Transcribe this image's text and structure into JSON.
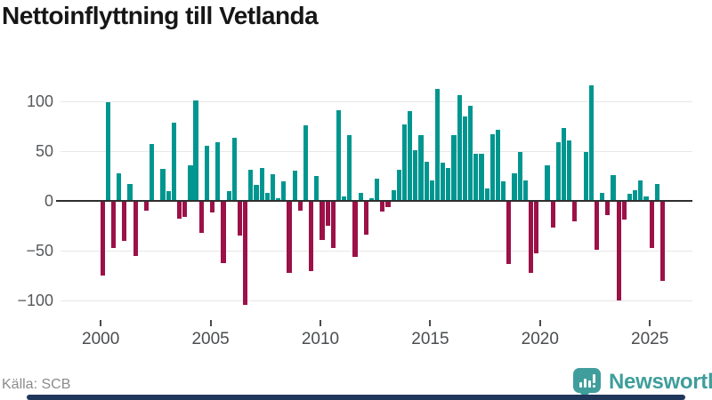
{
  "title": "Nettoinflyttning till Vetlanda",
  "source_label": "Källa: SCB",
  "branding": {
    "logo_text": "Newsworthy",
    "logo_icon": "bar-chart-speech-bubble-icon",
    "teal": "#3f9e9b",
    "navy": "#20375c"
  },
  "colors": {
    "positive_bar": "#009690",
    "negative_bar": "#9c1148",
    "grid": "#e7e7e7",
    "zero_line": "#2e2e2e",
    "axis_text": "#55585a",
    "title_text": "#161616",
    "source_text": "#8b8b8b"
  },
  "chart_data": {
    "type": "bar",
    "title": "Nettoinflyttning till Vetlanda",
    "xlabel": "",
    "ylabel": "",
    "x_start": "2000-Q1",
    "x_end": "2025-Q3",
    "frequency": "quarterly",
    "grid": true,
    "legend": false,
    "ylim": [
      -115,
      122
    ],
    "y_ticks": [
      100,
      50,
      0,
      -50,
      -100
    ],
    "y_tick_labels": [
      "100",
      "50",
      "0",
      "−50",
      "−100"
    ],
    "x_tick_labels": [
      "2000",
      "2005",
      "2010",
      "2015",
      "2020",
      "2025"
    ],
    "x_tick_quarter_indices": [
      0,
      20,
      40,
      60,
      80,
      100
    ],
    "values": [
      -74,
      98,
      -46,
      27,
      -39,
      16,
      -54,
      0,
      -9,
      56,
      0,
      31,
      9,
      77,
      -17,
      -15,
      35,
      100,
      -31,
      54,
      -11,
      58,
      -61,
      9,
      62,
      -34,
      -103,
      30,
      15,
      32,
      7,
      26,
      2,
      19,
      -71,
      29,
      -9,
      75,
      -69,
      24,
      -38,
      -24,
      -46,
      90,
      4,
      65,
      -55,
      7,
      -33,
      2,
      21,
      -10,
      -5,
      10,
      30,
      76,
      89,
      50,
      65,
      38,
      20,
      111,
      37,
      32,
      65,
      105,
      84,
      94,
      46,
      46,
      12,
      66,
      70,
      19,
      -62,
      27,
      48,
      20,
      -71,
      -52,
      0,
      35,
      -26,
      58,
      72,
      60,
      -20,
      0,
      48,
      115,
      -48,
      7,
      -13,
      25,
      -99,
      -18,
      6,
      10,
      20,
      4,
      -46,
      16,
      -79
    ]
  }
}
